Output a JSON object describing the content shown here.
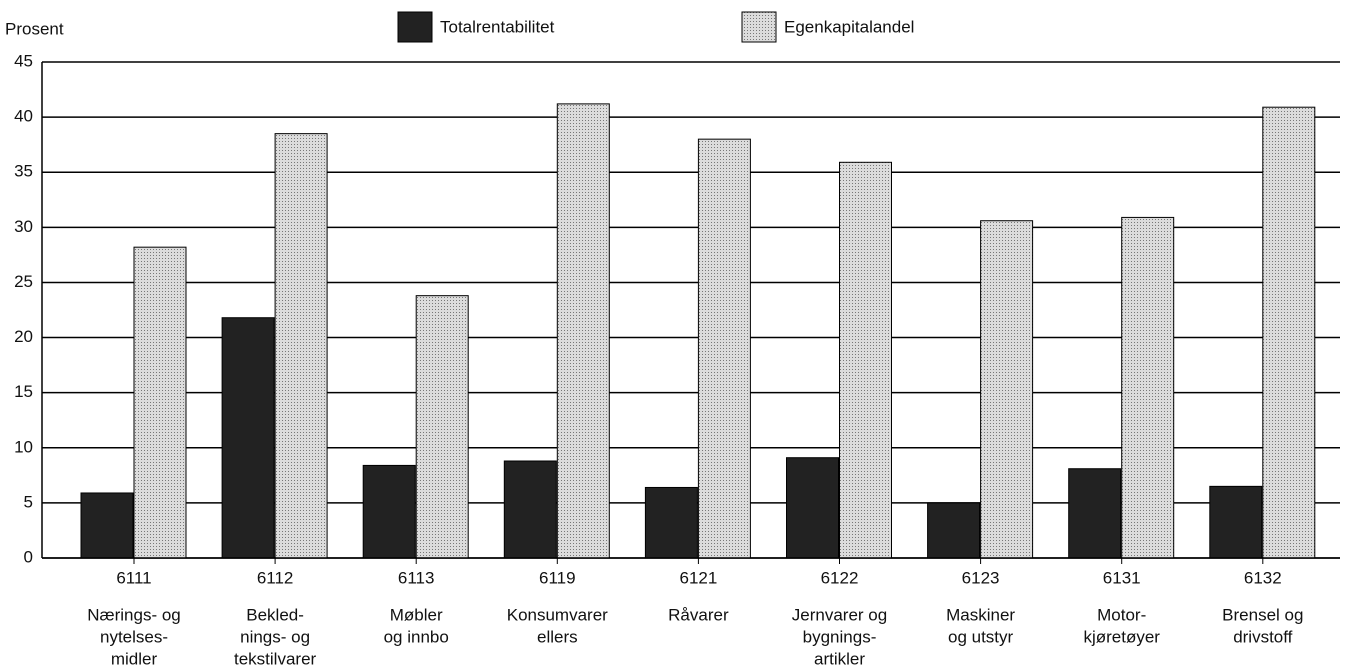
{
  "chart_data": {
    "type": "bar",
    "y_label": "Prosent",
    "categories": [
      "6111",
      "6112",
      "6113",
      "6119",
      "6121",
      "6122",
      "6123",
      "6131",
      "6132"
    ],
    "category_labels": [
      [
        "Nærings- og",
        "nytelses-",
        "midler"
      ],
      [
        "Bekled-",
        "nings- og",
        "tekstilvarer"
      ],
      [
        "Møbler",
        "og innbo"
      ],
      [
        "Konsumvarer",
        "ellers"
      ],
      [
        "Råvarer"
      ],
      [
        "Jernvarer og",
        "bygnings-",
        "artikler"
      ],
      [
        "Maskiner",
        "og utstyr"
      ],
      [
        "Motor-",
        "kjøretøyer"
      ],
      [
        "Brensel og",
        "drivstoff"
      ]
    ],
    "series": [
      {
        "name": "Totalrentabilitet",
        "color": "#222222",
        "values": [
          5.9,
          21.8,
          8.4,
          8.8,
          6.4,
          9.1,
          5.0,
          8.1,
          6.5
        ]
      },
      {
        "name": "Egenkapitalandel",
        "color": "#dcdcdc",
        "values": [
          28.2,
          38.5,
          23.8,
          41.2,
          38.0,
          35.9,
          30.6,
          30.9,
          40.9
        ]
      }
    ],
    "ylim": [
      0,
      45
    ],
    "yticks": [
      0,
      5,
      10,
      15,
      20,
      25,
      30,
      35,
      40,
      45
    ],
    "grid": true
  }
}
